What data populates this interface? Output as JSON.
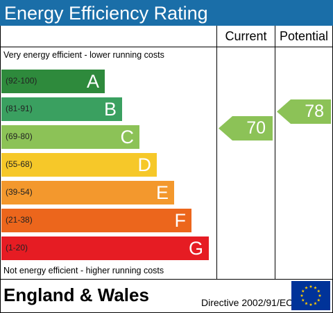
{
  "header": {
    "title": "Energy Efficiency Rating"
  },
  "columns": {
    "current": "Current",
    "potential": "Potential"
  },
  "notes": {
    "top": "Very energy efficient - lower running costs",
    "bottom": "Not energy efficient - higher running costs"
  },
  "footer": {
    "region": "England & Wales",
    "directive": "Directive 2002/91/EC"
  },
  "colors": {
    "title_bar": "#1a6ea8",
    "A": "#2e8a3c",
    "B": "#3aa060",
    "C": "#8cc257",
    "D": "#f6c829",
    "E": "#f3982d",
    "F": "#ec661c",
    "G": "#e61c23",
    "current_arrow": "#8cc257",
    "potential_arrow": "#8cc257"
  },
  "chart_data": {
    "type": "bar",
    "title": "Energy Efficiency Rating",
    "categories": [
      "A",
      "B",
      "C",
      "D",
      "E",
      "F",
      "G"
    ],
    "ranges": [
      "(92-100)",
      "(81-91)",
      "(69-80)",
      "(55-68)",
      "(39-54)",
      "(21-38)",
      "(1-20)"
    ],
    "current": {
      "label": "Current",
      "value": 70,
      "band": "C"
    },
    "potential": {
      "label": "Potential",
      "value": 78,
      "band": "C"
    }
  }
}
